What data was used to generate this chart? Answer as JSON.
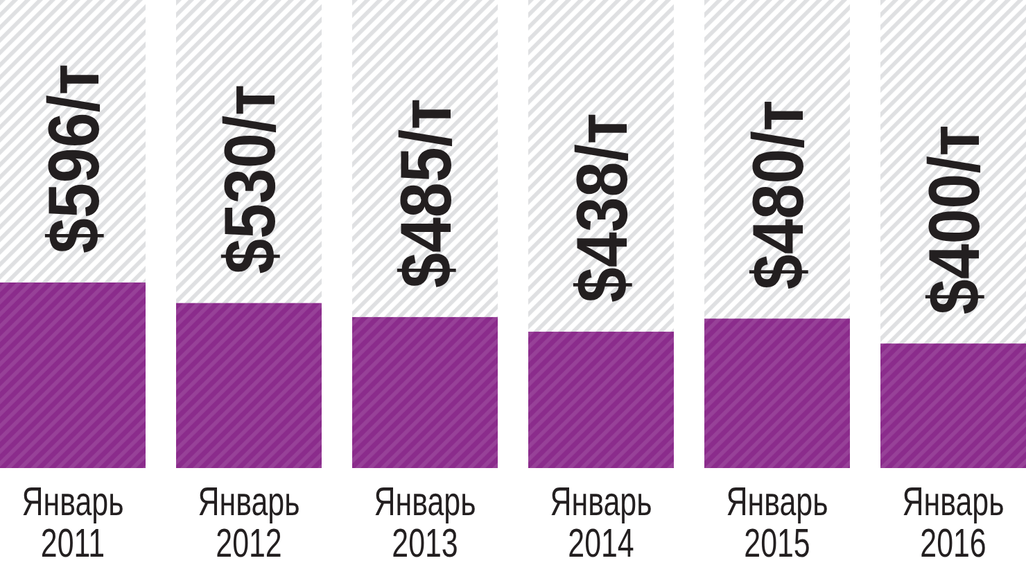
{
  "chart_data": {
    "type": "bar",
    "categories": [
      "Январь 2011",
      "Январь 2012",
      "Январь 2013",
      "Январь 2014",
      "Январь 2015",
      "Январь 2016"
    ],
    "values": [
      596,
      530,
      485,
      438,
      480,
      400
    ],
    "color": "#8b2c8c",
    "value_labels": [
      "$596/т",
      "$530/т",
      "$485/т",
      "$438/т",
      "$480/т",
      "$400/т"
    ]
  }
}
